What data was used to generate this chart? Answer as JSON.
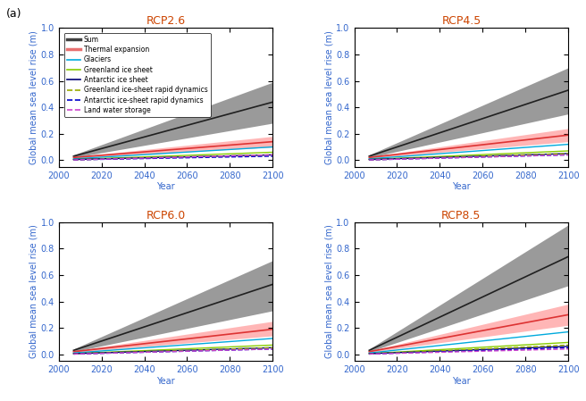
{
  "scenarios": [
    "RCP2.6",
    "RCP4.5",
    "RCP6.0",
    "RCP8.5"
  ],
  "title_color": "#cc4400",
  "ylabel": "Global mean sea level rise (m)",
  "xlabel": "Year",
  "xlim": [
    2000,
    2100
  ],
  "ylim": [
    -0.05,
    1.0
  ],
  "years": [
    2007,
    2100
  ],
  "sum_mean": {
    "RCP2.6": [
      0.03,
      0.44
    ],
    "RCP4.5": [
      0.03,
      0.53
    ],
    "RCP6.0": [
      0.03,
      0.53
    ],
    "RCP8.5": [
      0.03,
      0.74
    ]
  },
  "sum_upper": {
    "RCP2.6": [
      0.04,
      0.59
    ],
    "RCP4.5": [
      0.04,
      0.7
    ],
    "RCP6.0": [
      0.04,
      0.71
    ],
    "RCP8.5": [
      0.04,
      0.98
    ]
  },
  "sum_lower": {
    "RCP2.6": [
      0.02,
      0.28
    ],
    "RCP4.5": [
      0.02,
      0.35
    ],
    "RCP6.0": [
      0.02,
      0.33
    ],
    "RCP8.5": [
      0.02,
      0.52
    ]
  },
  "thermal_mean": {
    "RCP2.6": [
      0.02,
      0.14
    ],
    "RCP4.5": [
      0.02,
      0.19
    ],
    "RCP6.0": [
      0.02,
      0.19
    ],
    "RCP8.5": [
      0.02,
      0.3
    ]
  },
  "thermal_upper": {
    "RCP2.6": [
      0.025,
      0.18
    ],
    "RCP4.5": [
      0.025,
      0.24
    ],
    "RCP6.0": [
      0.025,
      0.25
    ],
    "RCP8.5": [
      0.025,
      0.38
    ]
  },
  "thermal_lower": {
    "RCP2.6": [
      0.015,
      0.1
    ],
    "RCP4.5": [
      0.015,
      0.14
    ],
    "RCP6.0": [
      0.015,
      0.14
    ],
    "RCP8.5": [
      0.015,
      0.22
    ]
  },
  "glaciers": {
    "RCP2.6": [
      0.01,
      0.1
    ],
    "RCP4.5": [
      0.01,
      0.12
    ],
    "RCP6.0": [
      0.01,
      0.12
    ],
    "RCP8.5": [
      0.01,
      0.17
    ]
  },
  "greenland_ice": {
    "RCP2.6": [
      0.005,
      0.06
    ],
    "RCP4.5": [
      0.005,
      0.07
    ],
    "RCP6.0": [
      0.005,
      0.07
    ],
    "RCP8.5": [
      0.005,
      0.09
    ]
  },
  "antarctic_ice": {
    "RCP2.6": [
      0.005,
      0.04
    ],
    "RCP4.5": [
      0.005,
      0.05
    ],
    "RCP6.0": [
      0.005,
      0.05
    ],
    "RCP8.5": [
      0.005,
      0.06
    ]
  },
  "greenland_rapid": {
    "RCP2.6": [
      0.002,
      0.04
    ],
    "RCP4.5": [
      0.002,
      0.05
    ],
    "RCP6.0": [
      0.002,
      0.05
    ],
    "RCP8.5": [
      0.002,
      0.07
    ]
  },
  "antarctic_rapid": {
    "RCP2.6": [
      0.002,
      0.03
    ],
    "RCP4.5": [
      0.002,
      0.04
    ],
    "RCP6.0": [
      0.002,
      0.04
    ],
    "RCP8.5": [
      0.002,
      0.05
    ]
  },
  "land_water": {
    "RCP2.6": [
      0.002,
      0.04
    ],
    "RCP4.5": [
      0.002,
      0.04
    ],
    "RCP6.0": [
      0.002,
      0.04
    ],
    "RCP8.5": [
      0.002,
      0.04
    ]
  },
  "legend_labels": [
    "Sum",
    "Thermal expansion",
    "Glaciers",
    "Greenland ice sheet",
    "Antarctic ice sheet",
    "Greenland ice-sheet rapid dynamics",
    "Antarctic ice-sheet rapid dynamics",
    "Land water storage"
  ],
  "legend_colors": [
    "#404040",
    "#e87070",
    "#00aadd",
    "#88cc00",
    "#000077",
    "#99aa00",
    "#0000cc",
    "#cc44cc"
  ],
  "legend_styles": [
    "solid",
    "solid",
    "solid",
    "solid",
    "solid",
    "dashed",
    "dashed",
    "dashed"
  ],
  "label_color": "#3366cc",
  "background_color": "#ffffff",
  "panel_label": "(a)"
}
